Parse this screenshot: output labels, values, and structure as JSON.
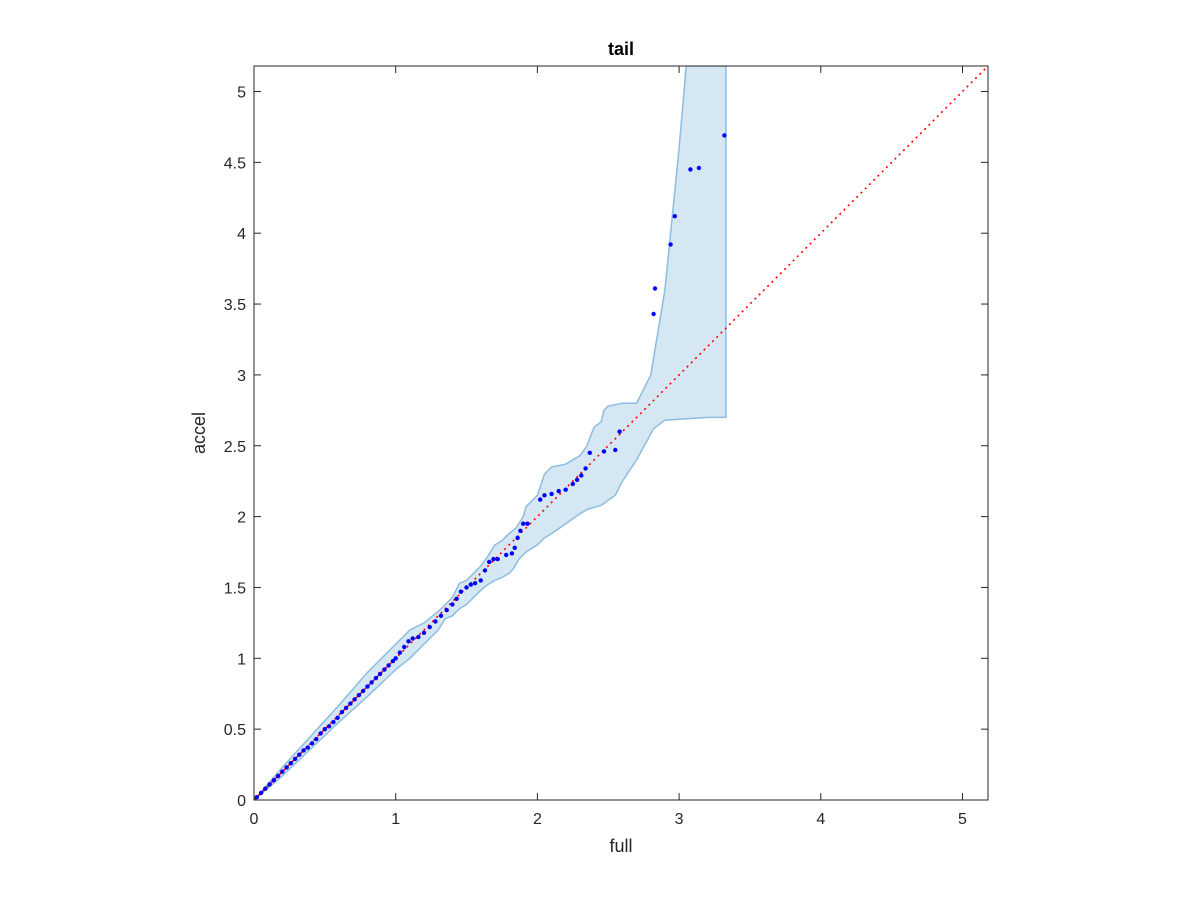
{
  "chart_data": {
    "type": "scatter",
    "title": "tail",
    "xlabel": "full",
    "ylabel": "accel",
    "xlim": [
      0,
      5.18
    ],
    "ylim": [
      0,
      5.18
    ],
    "xticks": [
      0,
      1,
      2,
      3,
      4,
      5
    ],
    "xtick_labels": [
      "0",
      "1",
      "2",
      "3",
      "4",
      "5"
    ],
    "yticks": [
      0,
      0.5,
      1,
      1.5,
      2,
      2.5,
      3,
      3.5,
      4,
      4.5,
      5
    ],
    "ytick_labels": [
      "0",
      "0.5",
      "1",
      "1.5",
      "2",
      "2.5",
      "3",
      "3.5",
      "4",
      "4.5",
      "5"
    ],
    "grid": false,
    "colors": {
      "points": "#0000ff",
      "reference": "#ff0000",
      "band_fill": "#d6e7f4",
      "band_edge": "#8cbde0",
      "axes": "#262626"
    },
    "reference_line": {
      "style": "dotted",
      "from": [
        0,
        0
      ],
      "to": [
        5.18,
        5.18
      ]
    },
    "confidence_band": {
      "upper": [
        [
          0,
          0
        ],
        [
          0.2,
          0.23
        ],
        [
          0.4,
          0.45
        ],
        [
          0.6,
          0.67
        ],
        [
          0.8,
          0.9
        ],
        [
          1.0,
          1.1
        ],
        [
          1.1,
          1.2
        ],
        [
          1.2,
          1.25
        ],
        [
          1.3,
          1.33
        ],
        [
          1.4,
          1.43
        ],
        [
          1.45,
          1.53
        ],
        [
          1.5,
          1.55
        ],
        [
          1.55,
          1.6
        ],
        [
          1.6,
          1.65
        ],
        [
          1.65,
          1.72
        ],
        [
          1.7,
          1.8
        ],
        [
          1.75,
          1.83
        ],
        [
          1.8,
          1.88
        ],
        [
          1.85,
          1.92
        ],
        [
          1.9,
          2.0
        ],
        [
          1.92,
          2.07
        ],
        [
          1.95,
          2.1
        ],
        [
          2.0,
          2.15
        ],
        [
          2.05,
          2.3
        ],
        [
          2.1,
          2.35
        ],
        [
          2.2,
          2.37
        ],
        [
          2.3,
          2.43
        ],
        [
          2.35,
          2.5
        ],
        [
          2.38,
          2.58
        ],
        [
          2.4,
          2.63
        ],
        [
          2.45,
          2.67
        ],
        [
          2.47,
          2.75
        ],
        [
          2.5,
          2.78
        ],
        [
          2.6,
          2.8
        ],
        [
          2.7,
          2.8
        ],
        [
          2.8,
          3.0
        ],
        [
          2.9,
          3.6
        ],
        [
          3.0,
          4.6
        ],
        [
          3.05,
          5.18
        ],
        [
          3.33,
          5.18
        ]
      ],
      "lower": [
        [
          3.33,
          2.7
        ],
        [
          3.2,
          2.7
        ],
        [
          2.9,
          2.68
        ],
        [
          2.82,
          2.62
        ],
        [
          2.7,
          2.4
        ],
        [
          2.6,
          2.25
        ],
        [
          2.55,
          2.15
        ],
        [
          2.45,
          2.08
        ],
        [
          2.35,
          2.05
        ],
        [
          2.3,
          2.02
        ],
        [
          2.2,
          1.95
        ],
        [
          2.1,
          1.88
        ],
        [
          2.05,
          1.85
        ],
        [
          2.0,
          1.8
        ],
        [
          1.92,
          1.75
        ],
        [
          1.87,
          1.7
        ],
        [
          1.83,
          1.63
        ],
        [
          1.8,
          1.6
        ],
        [
          1.75,
          1.57
        ],
        [
          1.7,
          1.55
        ],
        [
          1.65,
          1.52
        ],
        [
          1.6,
          1.48
        ],
        [
          1.55,
          1.43
        ],
        [
          1.5,
          1.38
        ],
        [
          1.45,
          1.35
        ],
        [
          1.4,
          1.3
        ],
        [
          1.35,
          1.28
        ],
        [
          1.3,
          1.2
        ],
        [
          1.25,
          1.15
        ],
        [
          1.2,
          1.1
        ],
        [
          1.1,
          1.0
        ],
        [
          1.0,
          0.92
        ],
        [
          0.8,
          0.73
        ],
        [
          0.6,
          0.55
        ],
        [
          0.4,
          0.36
        ],
        [
          0.2,
          0.17
        ],
        [
          0,
          0
        ]
      ]
    },
    "points": [
      [
        0.02,
        0.02
      ],
      [
        0.05,
        0.05
      ],
      [
        0.08,
        0.08
      ],
      [
        0.11,
        0.11
      ],
      [
        0.14,
        0.14
      ],
      [
        0.17,
        0.17
      ],
      [
        0.2,
        0.2
      ],
      [
        0.23,
        0.23
      ],
      [
        0.26,
        0.26
      ],
      [
        0.29,
        0.29
      ],
      [
        0.32,
        0.32
      ],
      [
        0.35,
        0.35
      ],
      [
        0.38,
        0.37
      ],
      [
        0.41,
        0.4
      ],
      [
        0.44,
        0.43
      ],
      [
        0.47,
        0.47
      ],
      [
        0.5,
        0.5
      ],
      [
        0.53,
        0.52
      ],
      [
        0.56,
        0.55
      ],
      [
        0.59,
        0.58
      ],
      [
        0.62,
        0.62
      ],
      [
        0.65,
        0.65
      ],
      [
        0.68,
        0.68
      ],
      [
        0.71,
        0.71
      ],
      [
        0.74,
        0.74
      ],
      [
        0.77,
        0.77
      ],
      [
        0.8,
        0.8
      ],
      [
        0.83,
        0.83
      ],
      [
        0.86,
        0.86
      ],
      [
        0.89,
        0.89
      ],
      [
        0.92,
        0.92
      ],
      [
        0.95,
        0.95
      ],
      [
        0.98,
        0.98
      ],
      [
        1.0,
        1.0
      ],
      [
        1.03,
        1.04
      ],
      [
        1.06,
        1.08
      ],
      [
        1.09,
        1.12
      ],
      [
        1.12,
        1.14
      ],
      [
        1.16,
        1.15
      ],
      [
        1.2,
        1.18
      ],
      [
        1.24,
        1.22
      ],
      [
        1.28,
        1.26
      ],
      [
        1.32,
        1.3
      ],
      [
        1.36,
        1.34
      ],
      [
        1.4,
        1.38
      ],
      [
        1.43,
        1.42
      ],
      [
        1.46,
        1.47
      ],
      [
        1.5,
        1.5
      ],
      [
        1.53,
        1.52
      ],
      [
        1.56,
        1.53
      ],
      [
        1.6,
        1.55
      ],
      [
        1.63,
        1.62
      ],
      [
        1.66,
        1.68
      ],
      [
        1.69,
        1.7
      ],
      [
        1.72,
        1.7
      ],
      [
        1.78,
        1.73
      ],
      [
        1.82,
        1.74
      ],
      [
        1.84,
        1.78
      ],
      [
        1.86,
        1.85
      ],
      [
        1.88,
        1.9
      ],
      [
        1.9,
        1.95
      ],
      [
        1.93,
        1.95
      ],
      [
        2.02,
        2.12
      ],
      [
        2.05,
        2.15
      ],
      [
        2.1,
        2.16
      ],
      [
        2.15,
        2.18
      ],
      [
        2.2,
        2.19
      ],
      [
        2.25,
        2.23
      ],
      [
        2.28,
        2.26
      ],
      [
        2.31,
        2.29
      ],
      [
        2.34,
        2.34
      ],
      [
        2.37,
        2.45
      ],
      [
        2.47,
        2.46
      ],
      [
        2.55,
        2.47
      ],
      [
        2.58,
        2.6
      ],
      [
        2.82,
        3.43
      ],
      [
        2.83,
        3.61
      ],
      [
        2.94,
        3.92
      ],
      [
        2.97,
        4.12
      ],
      [
        3.08,
        4.45
      ],
      [
        3.14,
        4.46
      ],
      [
        3.32,
        4.69
      ]
    ]
  }
}
